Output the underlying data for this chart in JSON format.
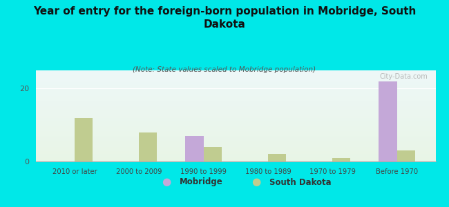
{
  "categories": [
    "2010 or later",
    "2000 to 2009",
    "1990 to 1999",
    "1980 to 1989",
    "1970 to 1979",
    "Before 1970"
  ],
  "mobridge": [
    0,
    0,
    7,
    0,
    0,
    22
  ],
  "south_dakota": [
    12,
    8,
    4,
    2,
    1,
    3
  ],
  "mobridge_color": "#c4a8d8",
  "sd_color": "#c0cc90",
  "title": "Year of entry for the foreign-born population in Mobridge, South\nDakota",
  "subtitle": "(Note: State values scaled to Mobridge population)",
  "bg_color": "#00e8e8",
  "ylim": [
    0,
    25
  ],
  "yticks": [
    0,
    20
  ],
  "bar_width": 0.28,
  "watermark": "City-Data.com"
}
